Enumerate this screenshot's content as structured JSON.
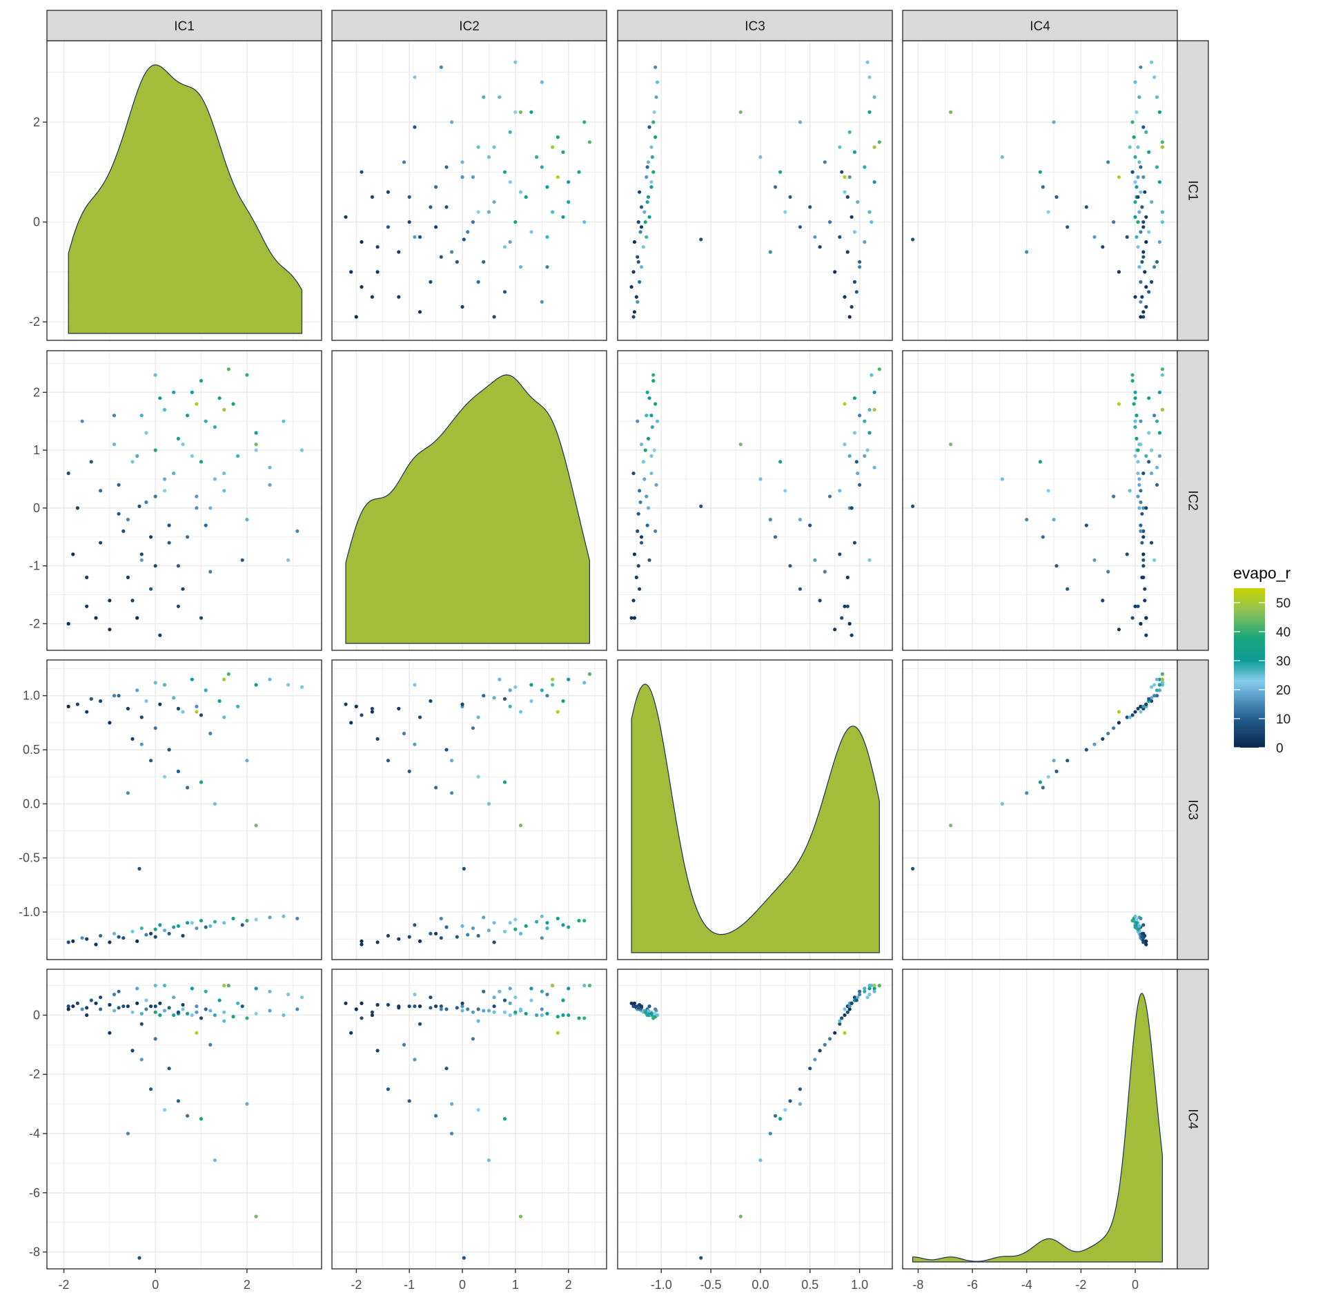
{
  "chart_data": {
    "type": "scatter-matrix",
    "variables": [
      "IC1",
      "IC2",
      "IC3",
      "IC4"
    ],
    "axes": {
      "IC1": {
        "range": [
          -2.37,
          3.63
        ],
        "ticks": [
          -2,
          0,
          2
        ],
        "tick_labels": [
          "-2",
          "0",
          "2"
        ]
      },
      "IC2": {
        "range": [
          -2.46,
          2.72
        ],
        "ticks": [
          -2,
          -1,
          0,
          1,
          2
        ],
        "tick_labels": [
          "-2",
          "-1",
          "0",
          "1",
          "2"
        ]
      },
      "IC3": {
        "range": [
          -1.44,
          1.33
        ],
        "ticks": [
          -1,
          -0.5,
          0,
          0.5,
          1
        ],
        "tick_labels": [
          "-1.0",
          "-0.5",
          "0.0",
          "0.5",
          "1.0"
        ]
      },
      "IC4": {
        "range": [
          -8.57,
          1.55
        ],
        "ticks": [
          -8,
          -6,
          -4,
          -2,
          0
        ],
        "tick_labels": [
          "-8",
          "-6",
          "-4",
          "-2",
          "0"
        ]
      }
    },
    "diagonal": "density",
    "off_diagonal": "scatter",
    "density_fill": "#a3bd3a",
    "density_line": "#1b2f55",
    "grid": true,
    "legend": {
      "title": "evapo_r",
      "position": "right",
      "range": [
        0,
        55
      ],
      "ticks": [
        0,
        10,
        20,
        30,
        40,
        50
      ],
      "tick_labels": [
        "0",
        "10",
        "20",
        "30",
        "40",
        "50"
      ],
      "color_stops": [
        {
          "value": 0,
          "color": "#0a2850"
        },
        {
          "value": 10,
          "color": "#245d8c"
        },
        {
          "value": 20,
          "color": "#6cb4dc"
        },
        {
          "value": 23,
          "color": "#86cdec"
        },
        {
          "value": 30,
          "color": "#0d9c98"
        },
        {
          "value": 38,
          "color": "#1ba77a"
        },
        {
          "value": 47,
          "color": "#8cc257"
        },
        {
          "value": 55,
          "color": "#c8d400"
        }
      ]
    },
    "observation_fields": [
      "IC1",
      "IC2",
      "IC3",
      "IC4",
      "evapo_r"
    ],
    "observations": [
      [
        -1.8,
        -0.8,
        -1.27,
        0.3,
        2
      ],
      [
        -1.5,
        -1.2,
        -1.25,
        0.25,
        4
      ],
      [
        -1.2,
        0.3,
        -1.22,
        0.2,
        12
      ],
      [
        -1.0,
        -1.6,
        -1.28,
        0.35,
        3
      ],
      [
        -0.9,
        1.1,
        -1.2,
        0.15,
        20
      ],
      [
        -0.7,
        -0.4,
        -1.24,
        0.3,
        8
      ],
      [
        -0.5,
        0.8,
        -1.18,
        0.1,
        24
      ],
      [
        -0.4,
        -1.9,
        -1.27,
        0.4,
        1
      ],
      [
        -0.3,
        1.6,
        -1.15,
        0.05,
        27
      ],
      [
        -0.2,
        0.1,
        -1.21,
        0.2,
        14
      ],
      [
        0.0,
        -1.0,
        -1.23,
        0.3,
        6
      ],
      [
        0.1,
        1.9,
        -1.12,
        0.0,
        30
      ],
      [
        0.2,
        0.5,
        -1.17,
        0.15,
        19
      ],
      [
        0.3,
        -0.6,
        -1.2,
        0.25,
        10
      ],
      [
        0.5,
        1.2,
        -1.13,
        0.05,
        33
      ],
      [
        0.6,
        -1.4,
        -1.22,
        0.35,
        5
      ],
      [
        0.8,
        0.9,
        -1.1,
        0.0,
        22
      ],
      [
        0.9,
        0.2,
        -1.15,
        0.1,
        17
      ],
      [
        1.0,
        2.2,
        -1.08,
        -0.1,
        36
      ],
      [
        1.1,
        -0.3,
        -1.14,
        0.2,
        11
      ],
      [
        1.3,
        1.4,
        -1.09,
        0.0,
        28
      ],
      [
        1.5,
        0.6,
        -1.1,
        0.1,
        21
      ],
      [
        1.7,
        1.8,
        -1.06,
        -0.05,
        35
      ],
      [
        1.9,
        -0.9,
        -1.12,
        0.3,
        9
      ],
      [
        2.2,
        1.0,
        -1.07,
        0.05,
        23
      ],
      [
        2.5,
        0.4,
        -1.05,
        0.15,
        18
      ],
      [
        2.8,
        1.5,
        -1.04,
        0.0,
        25
      ],
      [
        3.1,
        -0.4,
        -1.06,
        0.2,
        15
      ],
      [
        -1.9,
        0.6,
        -1.28,
        0.3,
        7
      ],
      [
        -1.6,
        1.5,
        -1.24,
        0.2,
        16
      ],
      [
        -0.8,
        -0.1,
        -1.23,
        0.25,
        9
      ],
      [
        0.4,
        2.0,
        -1.14,
        0.0,
        29
      ],
      [
        1.2,
        0.0,
        -1.13,
        0.15,
        20
      ],
      [
        -0.1,
        -0.5,
        -1.2,
        0.3,
        4
      ],
      [
        0.7,
        1.6,
        -1.1,
        0.05,
        31
      ],
      [
        2.0,
        2.3,
        -1.08,
        -0.1,
        40
      ],
      [
        -1.3,
        -1.9,
        -1.3,
        0.4,
        2
      ],
      [
        0.0,
        1.0,
        -1.16,
        0.1,
        38
      ],
      [
        -1.9,
        -2.0,
        0.9,
        0.2,
        1
      ],
      [
        -1.5,
        -1.7,
        0.85,
        0.0,
        3
      ],
      [
        -1.2,
        -0.6,
        0.95,
        0.6,
        6
      ],
      [
        -1.0,
        -2.1,
        0.75,
        -0.6,
        2
      ],
      [
        -0.8,
        0.4,
        1.0,
        0.8,
        11
      ],
      [
        -0.6,
        -1.2,
        0.88,
        0.3,
        4
      ],
      [
        -0.5,
        -1.6,
        0.6,
        -1.2,
        5
      ],
      [
        -0.4,
        0.9,
        1.05,
        0.9,
        18
      ],
      [
        -0.3,
        -0.8,
        0.8,
        -0.3,
        7
      ],
      [
        -0.2,
        1.3,
        0.95,
        0.5,
        22
      ],
      [
        -0.1,
        -1.4,
        0.4,
        -2.5,
        9
      ],
      [
        0.0,
        0.2,
        0.7,
        -0.8,
        13
      ],
      [
        0.1,
        -2.2,
        0.92,
        0.4,
        3
      ],
      [
        0.2,
        1.7,
        1.1,
        1.0,
        26
      ],
      [
        0.3,
        -0.3,
        0.5,
        -1.8,
        8
      ],
      [
        0.4,
        0.6,
        0.98,
        0.6,
        19
      ],
      [
        0.5,
        -1.0,
        0.3,
        -2.9,
        10
      ],
      [
        0.6,
        1.1,
        0.85,
        0.2,
        24
      ],
      [
        0.7,
        -0.5,
        0.15,
        -3.4,
        12
      ],
      [
        0.8,
        2.0,
        1.15,
        0.9,
        30
      ],
      [
        0.9,
        0.0,
        0.9,
        0.3,
        16
      ],
      [
        1.0,
        0.8,
        0.2,
        -3.5,
        34
      ],
      [
        1.1,
        1.5,
        1.05,
        0.8,
        28
      ],
      [
        1.2,
        -1.1,
        0.65,
        -1.0,
        14
      ],
      [
        1.3,
        0.5,
        0.0,
        -4.9,
        21
      ],
      [
        1.4,
        1.9,
        0.95,
        0.5,
        33
      ],
      [
        1.5,
        0.3,
        0.8,
        -0.2,
        25
      ],
      [
        1.6,
        2.4,
        1.2,
        1.0,
        42
      ],
      [
        1.8,
        0.9,
        0.9,
        0.4,
        27
      ],
      [
        2.0,
        -0.2,
        0.4,
        -3.0,
        19
      ],
      [
        2.2,
        1.3,
        1.1,
        0.9,
        31
      ],
      [
        2.5,
        0.7,
        1.15,
        0.8,
        20
      ],
      [
        2.9,
        -0.9,
        1.1,
        0.7,
        22
      ],
      [
        3.2,
        1.0,
        1.08,
        0.6,
        24
      ],
      [
        -1.7,
        0.0,
        0.92,
        0.4,
        5
      ],
      [
        -1.4,
        0.8,
        0.97,
        0.5,
        9
      ],
      [
        -0.9,
        1.6,
        1.0,
        0.7,
        14
      ],
      [
        0.0,
        2.3,
        1.12,
        1.0,
        25
      ],
      [
        0.5,
        -1.7,
        0.88,
        0.1,
        6
      ],
      [
        1.0,
        -1.9,
        0.82,
        -0.1,
        7
      ],
      [
        -0.6,
        -0.2,
        0.1,
        -4.0,
        15
      ],
      [
        1.5,
        1.7,
        1.15,
        1.0,
        49
      ],
      [
        0.9,
        1.8,
        0.85,
        -0.6,
        52
      ],
      [
        -0.3,
        -0.9,
        0.55,
        -1.5,
        17
      ],
      [
        0.2,
        0.3,
        0.25,
        -3.2,
        23
      ],
      [
        2.2,
        1.1,
        -0.2,
        -6.8,
        45
      ],
      [
        -0.35,
        0.03,
        -0.6,
        -8.2,
        8
      ]
    ]
  }
}
